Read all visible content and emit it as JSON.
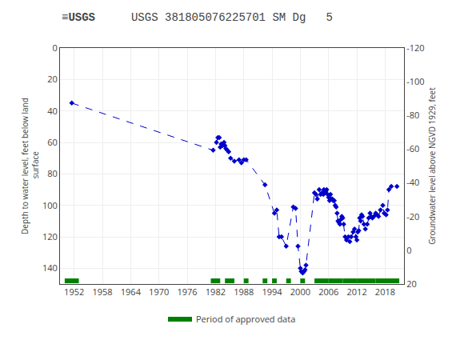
{
  "chart_data": {
    "type": "line",
    "title": "USGS 381805076225701 SM Dg   5",
    "ylabel": "Depth to water level, feet below land\n surface",
    "y2label": "Groundwater level above NGVD 1929, feet",
    "xlim": [
      1949,
      2022
    ],
    "xticks": [
      1952,
      1958,
      1964,
      1970,
      1976,
      1982,
      1988,
      1994,
      2000,
      2006,
      2012,
      2018
    ],
    "ylim": [
      150,
      0
    ],
    "yticks": [
      0,
      20,
      40,
      60,
      80,
      100,
      120,
      140
    ],
    "y2lim": [
      20,
      -120
    ],
    "y2ticks": [
      20,
      0,
      -20,
      -40,
      -60,
      -80,
      -100,
      -120
    ],
    "grid": true,
    "legend": "bottom",
    "annotations": [
      {
        "text": "≡USGS"
      }
    ],
    "series": [
      {
        "type": "line",
        "color": "#0000cc",
        "line_style": "dashed",
        "marker": "diamond",
        "x": [
          1951.5,
          1981.5,
          1982.2,
          1982.5,
          1982.8,
          1983.0,
          1983.2,
          1983.5,
          1983.8,
          1984.0,
          1984.2,
          1984.5,
          1984.8,
          1985.2,
          1986.0,
          1987.0,
          1987.5,
          1988.0,
          1988.5,
          1992.5,
          1994.5,
          1995.0,
          1995.5,
          1996.0,
          1997.0,
          1998.5,
          1999.0,
          1999.5,
          2000.0,
          2000.2,
          2000.5,
          2000.8,
          2001.0,
          2001.2,
          2003.0,
          2003.3,
          2003.6,
          2004.0,
          2004.3,
          2004.6,
          2004.9,
          2005.0,
          2005.2,
          2005.4,
          2005.6,
          2005.8,
          2006.0,
          2006.2,
          2006.4,
          2006.6,
          2006.8,
          2007.0,
          2007.2,
          2007.4,
          2007.6,
          2007.8,
          2008.0,
          2008.2,
          2008.4,
          2008.6,
          2008.8,
          2009.0,
          2009.2,
          2009.5,
          2009.8,
          2010.2,
          2010.5,
          2010.8,
          2011.2,
          2011.5,
          2011.8,
          2012.0,
          2012.2,
          2012.4,
          2012.6,
          2012.8,
          2013.0,
          2013.2,
          2013.5,
          2013.8,
          2014.2,
          2014.5,
          2014.8,
          2015.0,
          2015.3,
          2015.6,
          2016.0,
          2016.3,
          2016.6,
          2017.0,
          2017.5,
          2017.8,
          2018.2,
          2018.5,
          2018.8,
          2019.3,
          2020.5
        ],
        "values": [
          35,
          65,
          60,
          57,
          57,
          63,
          61,
          62,
          60,
          62,
          64,
          65,
          66,
          70,
          72,
          71,
          73,
          71,
          71,
          87,
          105,
          103,
          120,
          120,
          126,
          101,
          102,
          126,
          140,
          142,
          143,
          142,
          141,
          138,
          92,
          93,
          96,
          90,
          93,
          92,
          93,
          90,
          92,
          91,
          90,
          93,
          95,
          97,
          93,
          96,
          96,
          97,
          97,
          100,
          101,
          105,
          110,
          111,
          112,
          109,
          107,
          108,
          112,
          120,
          122,
          120,
          123,
          120,
          117,
          115,
          120,
          122,
          117,
          116,
          108,
          110,
          106,
          107,
          112,
          115,
          112,
          108,
          105,
          107,
          108,
          107,
          105,
          106,
          107,
          103,
          100,
          105,
          106,
          103,
          90,
          88,
          88
        ]
      },
      {
        "name": "Period of approved data",
        "type": "bar",
        "orientation": "horizontal",
        "color": "#008000",
        "y": 148,
        "periods": [
          [
            1950,
            1953
          ],
          [
            1981,
            1983
          ],
          [
            1984,
            1986
          ],
          [
            1988,
            1989
          ],
          [
            1992,
            1993
          ],
          [
            1994,
            1995
          ],
          [
            1997,
            1998
          ],
          [
            2000,
            2001
          ],
          [
            2003,
            2006
          ],
          [
            2006,
            2009
          ],
          [
            2009,
            2012
          ],
          [
            2012,
            2016
          ],
          [
            2016,
            2021
          ]
        ]
      }
    ]
  }
}
